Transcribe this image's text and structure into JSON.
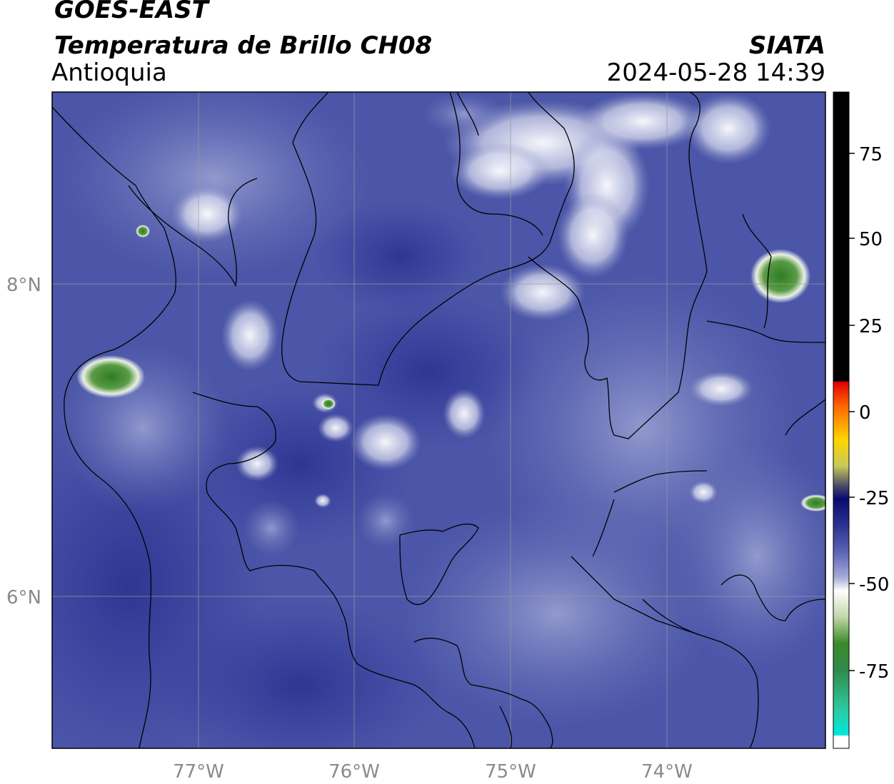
{
  "header": {
    "satellite": "GOES-EAST",
    "product": "Temperatura de Brillo CH08",
    "region": "Antioquia",
    "organization": "SIATA",
    "timestamp": "2024-05-28 14:39"
  },
  "map": {
    "x_ticks": [
      "77°W",
      "76°W",
      "75°W",
      "74°W"
    ],
    "y_ticks": [
      "8°N",
      "6°N"
    ],
    "background_color": "#4b56a8",
    "cold_cloud_color": "#ffffff",
    "deep_convection_color": "#3a8a2a"
  },
  "colorbar": {
    "labels": [
      "75",
      "50",
      "25",
      "0",
      "-25",
      "-50",
      "-75"
    ]
  }
}
